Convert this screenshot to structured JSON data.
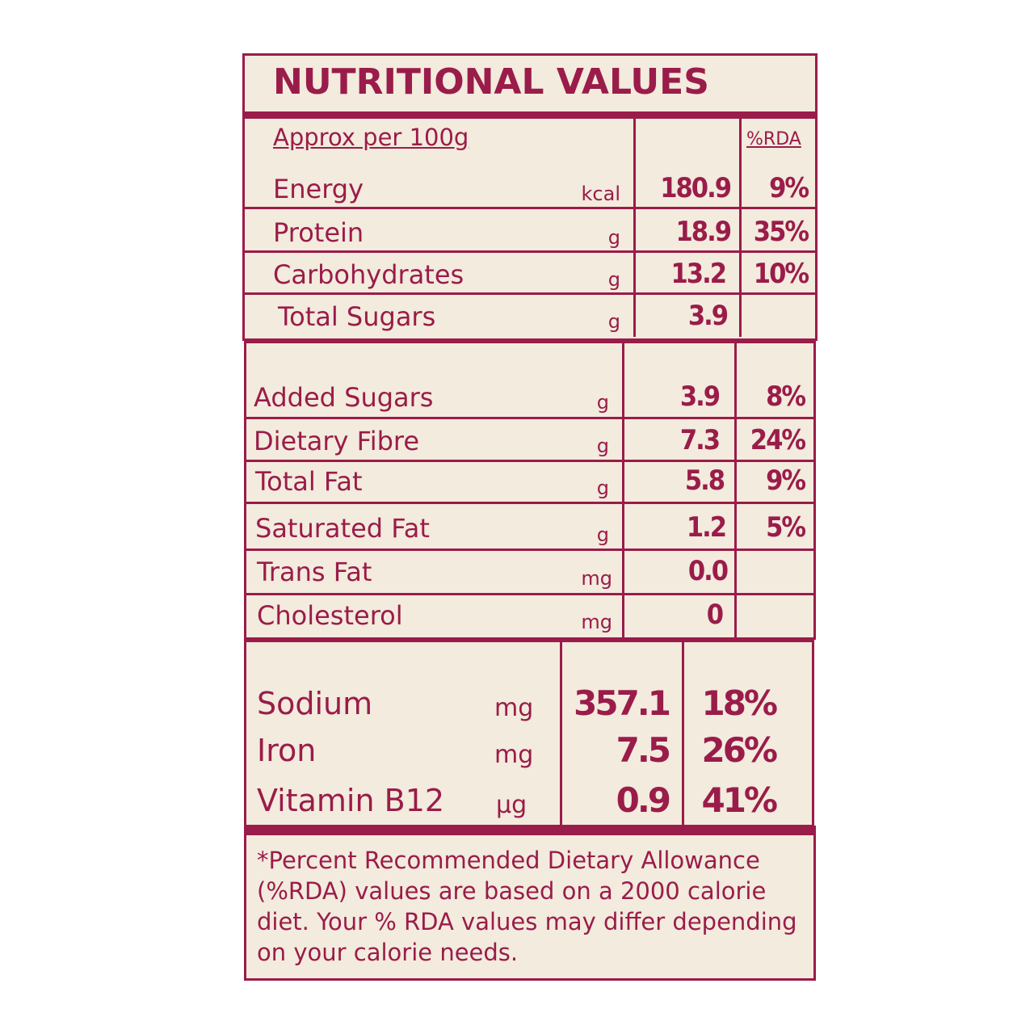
{
  "title": "NUTRITIONAL VALUES",
  "header": {
    "basis": "Approx per 100g",
    "rda_label": "%RDA"
  },
  "section1": [
    {
      "name": "Energy",
      "unit": "kcal",
      "value": "180.9",
      "rda": "9%"
    },
    {
      "name": "Protein",
      "unit": "g",
      "value": "18.9",
      "rda": "35%"
    },
    {
      "name": "Carbohydrates",
      "unit": "g",
      "value": "13.2",
      "rda": "10%"
    },
    {
      "name": "Total Sugars",
      "unit": "g",
      "value": "3.9",
      "rda": ""
    }
  ],
  "section2": [
    {
      "name": "Added Sugars",
      "unit": "g",
      "value": "3.9",
      "rda": "8%"
    },
    {
      "name": "Dietary Fibre",
      "unit": "g",
      "value": "7.3",
      "rda": "24%"
    },
    {
      "name": "Total Fat",
      "unit": "g",
      "value": "5.8",
      "rda": "9%"
    },
    {
      "name": "Saturated Fat",
      "unit": "g",
      "value": "1.2",
      "rda": "5%"
    },
    {
      "name": "Trans Fat",
      "unit": "mg",
      "value": "0.0",
      "rda": ""
    },
    {
      "name": "Cholesterol",
      "unit": "mg",
      "value": "0",
      "rda": ""
    }
  ],
  "section3": [
    {
      "name": "Sodium",
      "unit": "mg",
      "value": "357.1",
      "rda": "18%"
    },
    {
      "name": "Iron",
      "unit": "mg",
      "value": "7.5",
      "rda": "26%"
    },
    {
      "name": "Vitamin B12",
      "unit": "µg",
      "value": "0.9",
      "rda": "41%"
    }
  ],
  "footnote": "*Percent Recommended Dietary Allowance (%RDA) values are based on a 2000 calorie diet. Your % RDA values may differ depending on your calorie needs.",
  "colors": {
    "brand": "#9a1c4a",
    "background": "#f3ebdd"
  }
}
